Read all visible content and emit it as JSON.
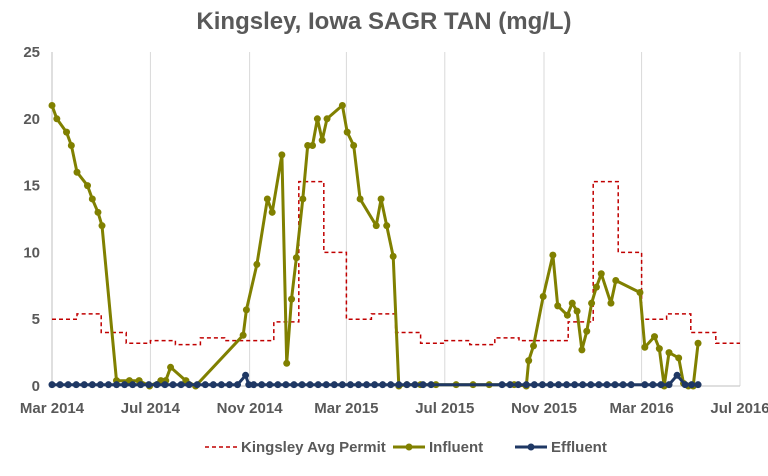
{
  "chart_data": {
    "type": "line",
    "title": "Kingsley, Iowa SAGR TAN (mg/L)",
    "xlabel": "",
    "ylabel": "",
    "ylim": [
      0,
      25
    ],
    "y_ticks": [
      "0",
      "5",
      "10",
      "15",
      "20",
      "25"
    ],
    "x_range": [
      "2014-03-01",
      "2016-07-01"
    ],
    "x_ticks": [
      {
        "date": "2014-03-01",
        "label": "Mar 2014"
      },
      {
        "date": "2014-07-01",
        "label": "Jul 2014"
      },
      {
        "date": "2014-11-01",
        "label": "Nov 2014"
      },
      {
        "date": "2015-03-01",
        "label": "Mar 2015"
      },
      {
        "date": "2015-07-01",
        "label": "Jul 2015"
      },
      {
        "date": "2015-11-01",
        "label": "Nov 2015"
      },
      {
        "date": "2016-03-01",
        "label": "Mar 2016"
      },
      {
        "date": "2016-07-01",
        "label": "Jul 2016"
      }
    ],
    "grid": "vertical",
    "legend_position": "bottom",
    "series": [
      {
        "name": "Kingsley Avg Permit",
        "style": "dashed-step",
        "color": "#c00000",
        "points": [
          [
            "2014-03-01",
            5.0
          ],
          [
            "2014-04-01",
            5.4
          ],
          [
            "2014-05-01",
            4.0
          ],
          [
            "2014-06-01",
            3.2
          ],
          [
            "2014-07-01",
            3.4
          ],
          [
            "2014-08-01",
            3.1
          ],
          [
            "2014-09-01",
            3.6
          ],
          [
            "2014-10-01",
            3.4
          ],
          [
            "2014-11-01",
            3.4
          ],
          [
            "2014-12-01",
            4.8
          ],
          [
            "2015-01-01",
            15.3
          ],
          [
            "2015-02-01",
            10.0
          ],
          [
            "2015-03-01",
            5.0
          ],
          [
            "2015-04-01",
            5.4
          ],
          [
            "2015-05-01",
            4.0
          ],
          [
            "2015-06-01",
            3.2
          ],
          [
            "2015-07-01",
            3.4
          ],
          [
            "2015-08-01",
            3.1
          ],
          [
            "2015-09-01",
            3.6
          ],
          [
            "2015-10-01",
            3.4
          ],
          [
            "2015-11-01",
            3.4
          ],
          [
            "2015-12-01",
            4.8
          ],
          [
            "2016-01-01",
            15.3
          ],
          [
            "2016-02-01",
            10.0
          ],
          [
            "2016-03-01",
            5.0
          ],
          [
            "2016-04-01",
            5.4
          ],
          [
            "2016-05-01",
            4.0
          ],
          [
            "2016-06-01",
            3.2
          ],
          [
            "2016-07-01",
            3.2
          ]
        ]
      },
      {
        "name": "Influent",
        "style": "line-markers",
        "color": "#808000",
        "points": [
          [
            "2014-03-01",
            21.0
          ],
          [
            "2014-03-07",
            20.0
          ],
          [
            "2014-03-19",
            19.0
          ],
          [
            "2014-03-25",
            18.0
          ],
          [
            "2014-04-01",
            16.0
          ],
          [
            "2014-04-14",
            15.0
          ],
          [
            "2014-04-20",
            14.0
          ],
          [
            "2014-04-27",
            13.0
          ],
          [
            "2014-05-02",
            12.0
          ],
          [
            "2014-05-20",
            0.4
          ],
          [
            "2014-06-05",
            0.4
          ],
          [
            "2014-06-17",
            0.4
          ],
          [
            "2014-06-30",
            0.0
          ],
          [
            "2014-07-14",
            0.4
          ],
          [
            "2014-07-20",
            0.4
          ],
          [
            "2014-07-26",
            1.4
          ],
          [
            "2014-08-14",
            0.4
          ],
          [
            "2014-08-26",
            0.0
          ],
          [
            "2014-10-24",
            3.8
          ],
          [
            "2014-10-28",
            5.7
          ],
          [
            "2014-11-10",
            9.1
          ],
          [
            "2014-11-23",
            14.0
          ],
          [
            "2014-11-29",
            13.0
          ],
          [
            "2014-12-11",
            17.3
          ],
          [
            "2014-12-17",
            1.7
          ],
          [
            "2014-12-23",
            6.5
          ],
          [
            "2014-12-29",
            9.6
          ],
          [
            "2015-01-06",
            14.0
          ],
          [
            "2015-01-12",
            18.0
          ],
          [
            "2015-01-18",
            18.0
          ],
          [
            "2015-01-24",
            20.0
          ],
          [
            "2015-01-30",
            18.4
          ],
          [
            "2015-02-05",
            20.0
          ],
          [
            "2015-02-24",
            21.0
          ],
          [
            "2015-03-02",
            19.0
          ],
          [
            "2015-03-10",
            18.0
          ],
          [
            "2015-03-18",
            14.0
          ],
          [
            "2015-04-07",
            12.0
          ],
          [
            "2015-04-13",
            14.0
          ],
          [
            "2015-04-20",
            12.0
          ],
          [
            "2015-04-28",
            9.7
          ],
          [
            "2015-05-05",
            0.0
          ],
          [
            "2015-05-15",
            0.1
          ],
          [
            "2015-06-01",
            0.1
          ],
          [
            "2015-06-20",
            0.1
          ],
          [
            "2015-07-15",
            0.1
          ],
          [
            "2015-08-05",
            0.1
          ],
          [
            "2015-08-25",
            0.1
          ],
          [
            "2015-09-25",
            0.1
          ],
          [
            "2015-10-10",
            0.0
          ],
          [
            "2015-10-13",
            1.9
          ],
          [
            "2015-10-19",
            3.0
          ],
          [
            "2015-10-31",
            6.7
          ],
          [
            "2015-11-12",
            9.8
          ],
          [
            "2015-11-18",
            6.0
          ],
          [
            "2015-11-30",
            5.3
          ],
          [
            "2015-12-06",
            6.2
          ],
          [
            "2015-12-12",
            5.6
          ],
          [
            "2015-12-18",
            2.7
          ],
          [
            "2015-12-24",
            4.1
          ],
          [
            "2015-12-30",
            6.2
          ],
          [
            "2016-01-05",
            7.4
          ],
          [
            "2016-01-11",
            8.4
          ],
          [
            "2016-01-23",
            6.2
          ],
          [
            "2016-01-29",
            7.9
          ],
          [
            "2016-02-28",
            7.0
          ],
          [
            "2016-03-05",
            2.9
          ],
          [
            "2016-03-17",
            3.7
          ],
          [
            "2016-03-23",
            2.8
          ],
          [
            "2016-03-29",
            0.0
          ],
          [
            "2016-04-04",
            2.5
          ],
          [
            "2016-04-16",
            2.1
          ],
          [
            "2016-04-22",
            0.2
          ],
          [
            "2016-04-28",
            0.0
          ],
          [
            "2016-05-04",
            0.0
          ],
          [
            "2016-05-10",
            3.2
          ]
        ]
      },
      {
        "name": "Effluent",
        "style": "line-markers",
        "color": "#1f3864",
        "points": [
          [
            "2014-03-01",
            0.1
          ],
          [
            "2014-03-11",
            0.1
          ],
          [
            "2014-03-21",
            0.1
          ],
          [
            "2014-03-31",
            0.1
          ],
          [
            "2014-04-10",
            0.1
          ],
          [
            "2014-04-20",
            0.1
          ],
          [
            "2014-04-30",
            0.1
          ],
          [
            "2014-05-10",
            0.1
          ],
          [
            "2014-05-20",
            0.1
          ],
          [
            "2014-05-30",
            0.1
          ],
          [
            "2014-06-09",
            0.1
          ],
          [
            "2014-06-19",
            0.1
          ],
          [
            "2014-06-29",
            0.1
          ],
          [
            "2014-07-09",
            0.1
          ],
          [
            "2014-07-19",
            0.1
          ],
          [
            "2014-07-29",
            0.1
          ],
          [
            "2014-08-08",
            0.1
          ],
          [
            "2014-08-18",
            0.1
          ],
          [
            "2014-08-28",
            0.1
          ],
          [
            "2014-09-07",
            0.1
          ],
          [
            "2014-09-17",
            0.1
          ],
          [
            "2014-09-27",
            0.1
          ],
          [
            "2014-10-07",
            0.1
          ],
          [
            "2014-10-17",
            0.1
          ],
          [
            "2014-10-27",
            0.8
          ],
          [
            "2014-10-31",
            0.1
          ],
          [
            "2014-11-06",
            0.1
          ],
          [
            "2014-11-16",
            0.1
          ],
          [
            "2014-11-26",
            0.1
          ],
          [
            "2014-12-06",
            0.1
          ],
          [
            "2014-12-16",
            0.1
          ],
          [
            "2014-12-26",
            0.1
          ],
          [
            "2015-01-05",
            0.1
          ],
          [
            "2015-01-15",
            0.1
          ],
          [
            "2015-01-25",
            0.1
          ],
          [
            "2015-02-04",
            0.1
          ],
          [
            "2015-02-14",
            0.1
          ],
          [
            "2015-02-24",
            0.1
          ],
          [
            "2015-03-06",
            0.1
          ],
          [
            "2015-03-16",
            0.1
          ],
          [
            "2015-03-26",
            0.1
          ],
          [
            "2015-04-05",
            0.1
          ],
          [
            "2015-04-15",
            0.1
          ],
          [
            "2015-04-25",
            0.1
          ],
          [
            "2015-05-05",
            0.1
          ],
          [
            "2015-05-15",
            0.1
          ],
          [
            "2015-05-25",
            0.1
          ],
          [
            "2015-06-04",
            0.1
          ],
          [
            "2015-06-14",
            0.1
          ],
          [
            "2015-09-10",
            0.1
          ],
          [
            "2015-09-20",
            0.1
          ],
          [
            "2015-09-30",
            0.1
          ],
          [
            "2015-10-10",
            0.1
          ],
          [
            "2015-10-20",
            0.1
          ],
          [
            "2015-10-30",
            0.1
          ],
          [
            "2015-11-09",
            0.1
          ],
          [
            "2015-11-19",
            0.1
          ],
          [
            "2015-11-29",
            0.1
          ],
          [
            "2015-12-09",
            0.1
          ],
          [
            "2015-12-19",
            0.1
          ],
          [
            "2015-12-29",
            0.1
          ],
          [
            "2016-01-08",
            0.1
          ],
          [
            "2016-01-18",
            0.1
          ],
          [
            "2016-01-28",
            0.1
          ],
          [
            "2016-02-07",
            0.1
          ],
          [
            "2016-02-17",
            0.1
          ],
          [
            "2016-03-05",
            0.1
          ],
          [
            "2016-03-15",
            0.1
          ],
          [
            "2016-03-25",
            0.1
          ],
          [
            "2016-04-04",
            0.1
          ],
          [
            "2016-04-14",
            0.8
          ],
          [
            "2016-04-24",
            0.1
          ],
          [
            "2016-05-02",
            0.1
          ],
          [
            "2016-05-10",
            0.1
          ]
        ]
      }
    ]
  }
}
